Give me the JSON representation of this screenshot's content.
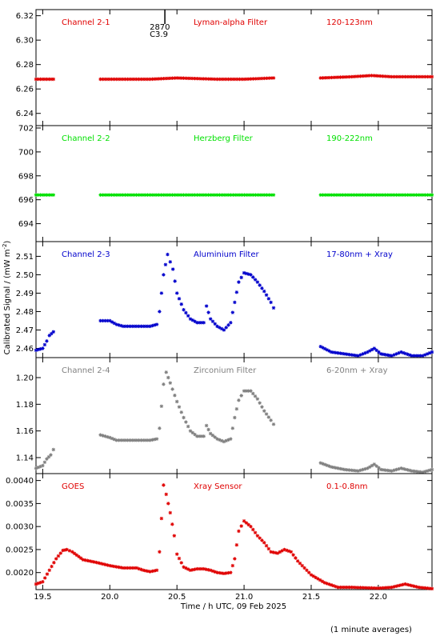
{
  "chart_data": {
    "type": "scatter",
    "xlabel": "Time / h UTC, 09 Feb 2025",
    "ylabel": "Calibrated Signal / (mW m",
    "ylabel_sup": "-2",
    "ylabel_close": ")",
    "footnote": "(1 minute averages)",
    "xlim": [
      19.45,
      22.4
    ],
    "xticks": [
      19.5,
      20.0,
      20.5,
      21.0,
      21.5,
      22.0
    ],
    "xtick_labels": [
      "19.5",
      "20.0",
      "20.5",
      "21.0",
      "21.5",
      "22.0"
    ],
    "flare_marker": {
      "x": 20.41,
      "label1": "2870",
      "label2": "C3.9"
    },
    "panels": [
      {
        "channel": "Channel 2-1",
        "filter": "Lyman-alpha Filter",
        "band": "120-123nm",
        "color": "#e00000",
        "ylim": [
          6.23,
          6.325
        ],
        "yticks": [
          6.24,
          6.26,
          6.28,
          6.3,
          6.32
        ],
        "ytick_labels": [
          "6.24",
          "6.26",
          "6.28",
          "6.30",
          "6.32"
        ],
        "segments": [
          {
            "x": [
              19.45,
              19.58
            ],
            "y": [
              6.268,
              6.268
            ]
          },
          {
            "x": [
              19.93,
              20.3,
              20.5,
              20.8,
              21.0,
              21.22
            ],
            "y": [
              6.268,
              6.268,
              6.269,
              6.268,
              6.268,
              6.269
            ]
          },
          {
            "x": [
              21.57,
              21.8,
              21.95,
              22.1,
              22.4
            ],
            "y": [
              6.269,
              6.27,
              6.271,
              6.27,
              6.27
            ]
          }
        ]
      },
      {
        "channel": "Channel 2-2",
        "filter": "Herzberg Filter",
        "band": "190-222nm",
        "color": "#00e000",
        "ylim": [
          692.5,
          702.2
        ],
        "yticks": [
          694,
          696,
          698,
          700,
          702
        ],
        "ytick_labels": [
          "694",
          "696",
          "698",
          "700",
          "702"
        ],
        "segments": [
          {
            "x": [
              19.45,
              19.58
            ],
            "y": [
              696.4,
              696.4
            ]
          },
          {
            "x": [
              19.93,
              21.22
            ],
            "y": [
              696.4,
              696.4
            ]
          },
          {
            "x": [
              21.57,
              22.4
            ],
            "y": [
              696.4,
              696.4
            ]
          }
        ]
      },
      {
        "channel": "Channel 2-3",
        "filter": "Aluminium Filter",
        "band": "17-80nm + Xray",
        "color": "#0000cc",
        "ylim": [
          2.455,
          2.518
        ],
        "yticks": [
          2.46,
          2.47,
          2.48,
          2.49,
          2.5,
          2.51
        ],
        "ytick_labels": [
          "2.46",
          "2.47",
          "2.48",
          "2.49",
          "2.50",
          "2.51"
        ],
        "segments": [
          {
            "x": [
              19.45,
              19.5,
              19.53,
              19.55,
              19.58
            ],
            "y": [
              2.459,
              2.46,
              2.464,
              2.467,
              2.469
            ]
          },
          {
            "x": [
              19.93,
              20.0,
              20.05,
              20.1,
              20.15,
              20.2,
              20.25,
              20.3,
              20.35
            ],
            "y": [
              2.475,
              2.475,
              2.473,
              2.472,
              2.472,
              2.472,
              2.472,
              2.472,
              2.473
            ]
          },
          {
            "x": [
              20.37,
              20.4,
              20.43,
              20.47,
              20.5,
              20.55,
              20.6,
              20.65,
              20.7,
              20.72,
              20.75,
              20.8,
              20.85,
              20.9,
              20.93,
              20.96,
              21.0,
              21.05,
              21.1,
              21.15,
              21.2,
              21.22
            ],
            "y": [
              2.48,
              2.5,
              2.511,
              2.503,
              2.49,
              2.481,
              2.476,
              2.474,
              2.474,
              2.483,
              2.476,
              2.472,
              2.47,
              2.474,
              2.485,
              2.496,
              2.501,
              2.5,
              2.496,
              2.491,
              2.485,
              2.482
            ]
          },
          {
            "x": [
              21.57,
              21.65,
              21.75,
              21.85,
              21.92,
              21.97,
              22.02,
              22.1,
              22.17,
              22.25,
              22.33,
              22.4
            ],
            "y": [
              2.461,
              2.458,
              2.457,
              2.456,
              2.458,
              2.46,
              2.457,
              2.456,
              2.458,
              2.456,
              2.456,
              2.458
            ]
          }
        ]
      },
      {
        "channel": "Channel 2-4",
        "filter": "Zirconium Filter",
        "band": "6-20nm + Xray",
        "color": "#808080",
        "ylim": [
          1.128,
          1.215
        ],
        "yticks": [
          1.14,
          1.16,
          1.18,
          1.2
        ],
        "ytick_labels": [
          "1.14",
          "1.16",
          "1.18",
          "1.20"
        ],
        "segments": [
          {
            "x": [
              19.45,
              19.5,
              19.53,
              19.56,
              19.58
            ],
            "y": [
              1.132,
              1.134,
              1.139,
              1.142,
              1.146
            ]
          },
          {
            "x": [
              19.93,
              20.0,
              20.05,
              20.1,
              20.15,
              20.2,
              20.25,
              20.3,
              20.35
            ],
            "y": [
              1.157,
              1.155,
              1.153,
              1.153,
              1.153,
              1.153,
              1.153,
              1.153,
              1.154
            ]
          },
          {
            "x": [
              20.37,
              20.4,
              20.42,
              20.45,
              20.5,
              20.55,
              20.6,
              20.65,
              20.7,
              20.72,
              20.75,
              20.8,
              20.85,
              20.9,
              20.93,
              20.96,
              21.0,
              21.05,
              21.1,
              21.15,
              21.2,
              21.22
            ],
            "y": [
              1.162,
              1.195,
              1.204,
              1.196,
              1.182,
              1.17,
              1.16,
              1.156,
              1.156,
              1.164,
              1.158,
              1.154,
              1.152,
              1.154,
              1.17,
              1.183,
              1.19,
              1.19,
              1.184,
              1.175,
              1.168,
              1.165
            ]
          },
          {
            "x": [
              21.57,
              21.65,
              21.75,
              21.85,
              21.92,
              21.97,
              22.02,
              22.1,
              22.17,
              22.25,
              22.33,
              22.4
            ],
            "y": [
              1.136,
              1.133,
              1.131,
              1.13,
              1.132,
              1.135,
              1.131,
              1.13,
              1.132,
              1.13,
              1.129,
              1.131
            ]
          }
        ]
      },
      {
        "channel": "GOES",
        "filter": "Xray Sensor",
        "band": "0.1-0.8nm",
        "color": "#e00000",
        "ylim": [
          0.00163,
          0.00415
        ],
        "yticks": [
          0.002,
          0.0025,
          0.003,
          0.0035,
          0.004
        ],
        "ytick_labels": [
          "0.0020",
          "0.0025",
          "0.0030",
          "0.0035",
          "0.0040"
        ],
        "segments": [
          {
            "x": [
              19.45,
              19.5,
              19.55,
              19.6,
              19.65,
              19.68,
              19.72,
              19.8,
              19.9,
              20.0,
              20.1,
              20.15,
              20.2,
              20.25,
              20.3,
              20.35
            ],
            "y": [
              0.00175,
              0.0018,
              0.00205,
              0.0023,
              0.00248,
              0.0025,
              0.00245,
              0.00228,
              0.00222,
              0.00215,
              0.0021,
              0.0021,
              0.0021,
              0.00205,
              0.00202,
              0.00205
            ]
          },
          {
            "x": [
              20.37,
              20.4,
              20.42,
              20.45,
              20.48,
              20.5,
              20.55,
              20.6,
              20.65,
              20.7,
              20.75,
              20.8,
              20.85,
              20.9,
              20.93,
              20.96,
              21.0,
              21.05,
              21.1,
              21.15,
              21.2,
              21.25,
              21.3,
              21.35,
              21.4,
              21.5,
              21.6,
              21.7,
              21.8,
              21.9,
              22.0,
              22.1,
              22.2,
              22.3,
              22.4
            ],
            "y": [
              0.00245,
              0.0039,
              0.0037,
              0.0033,
              0.0028,
              0.0024,
              0.00212,
              0.00205,
              0.00208,
              0.00208,
              0.00205,
              0.002,
              0.00198,
              0.002,
              0.0023,
              0.0029,
              0.00312,
              0.003,
              0.0028,
              0.00265,
              0.00245,
              0.00242,
              0.0025,
              0.00245,
              0.00225,
              0.00195,
              0.00178,
              0.00168,
              0.00168,
              0.00167,
              0.00166,
              0.00168,
              0.00175,
              0.00168,
              0.00165
            ]
          }
        ]
      }
    ]
  }
}
